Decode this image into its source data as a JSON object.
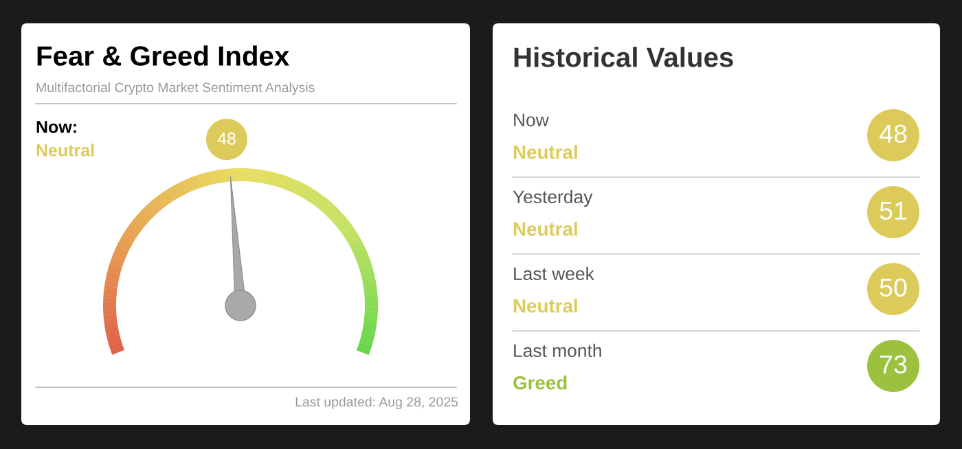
{
  "chart_data": [
    {
      "type": "other",
      "title": "Fear & Greed Index",
      "subtitle": "Multifactorial Crypto Market Sentiment Analysis",
      "values": [
        48
      ],
      "data_labels": true,
      "color": "#dccb5b",
      "annotations": [
        "Now:",
        "Neutral",
        "Last updated: Aug 28, 2025"
      ]
    },
    {
      "type": "other",
      "title": "Historical Values",
      "categories": [
        "Now",
        "Yesterday",
        "Last week",
        "Last month"
      ],
      "values": [
        48,
        51,
        50,
        73
      ],
      "data_labels": true,
      "colors": [
        "#dccb5b",
        "#dccb5b",
        "#dccb5b",
        "#9bc13f"
      ],
      "annotations": [
        "Neutral",
        "Neutral",
        "Neutral",
        "Greed"
      ]
    }
  ]
}
